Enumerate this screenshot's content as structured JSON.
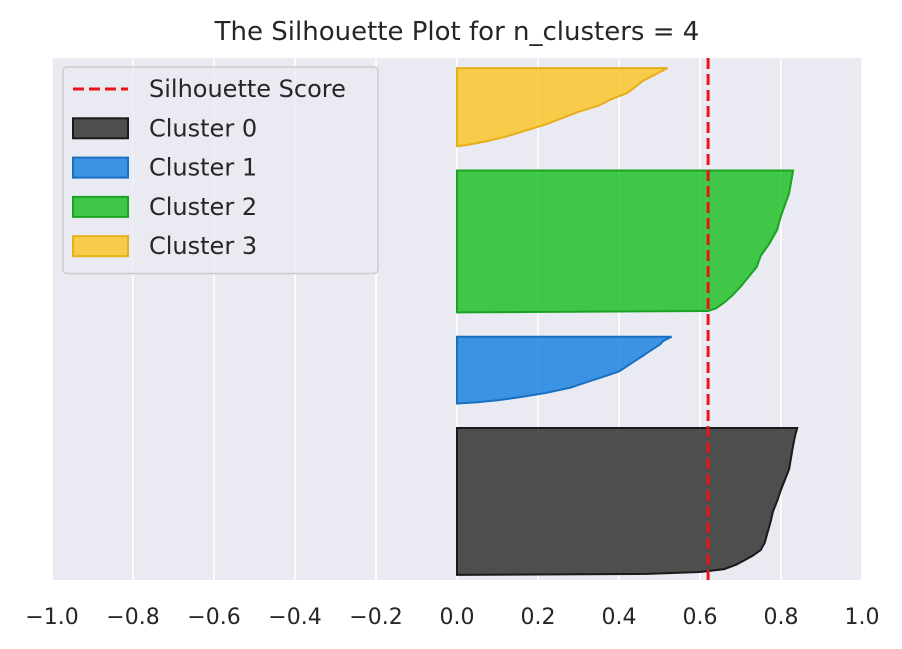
{
  "chart_data": {
    "type": "area",
    "title": "The Silhouette Plot for n_clusters = 4",
    "xlabel": "",
    "ylabel": "",
    "xlim": [
      -1.0,
      1.0
    ],
    "xticks": [
      "−1.0",
      "−0.8",
      "−0.6",
      "−0.4",
      "−0.2",
      "0.0",
      "0.2",
      "0.4",
      "0.6",
      "0.8",
      "1.0"
    ],
    "xtick_values": [
      -1.0,
      -0.8,
      -0.6,
      -0.4,
      -0.2,
      0.0,
      0.2,
      0.4,
      0.6,
      0.8,
      1.0
    ],
    "grid": true,
    "legend_position": "top-left",
    "silhouette_score": {
      "name": "Silhouette Score",
      "value": 0.62,
      "color": "#e8151b"
    },
    "clusters": [
      {
        "name": "Cluster 0",
        "color": "#333333",
        "edge": "#1a1a1a",
        "y_start": 10,
        "y_end": 300,
        "profile": [
          [
            0,
            0.84
          ],
          [
            0.05,
            0.835
          ],
          [
            0.12,
            0.83
          ],
          [
            0.2,
            0.825
          ],
          [
            0.28,
            0.82
          ],
          [
            0.35,
            0.81
          ],
          [
            0.42,
            0.8
          ],
          [
            0.5,
            0.79
          ],
          [
            0.57,
            0.78
          ],
          [
            0.63,
            0.775
          ],
          [
            0.68,
            0.77
          ],
          [
            0.73,
            0.765
          ],
          [
            0.78,
            0.76
          ],
          [
            0.83,
            0.75
          ],
          [
            0.87,
            0.73
          ],
          [
            0.9,
            0.71
          ],
          [
            0.93,
            0.69
          ],
          [
            0.96,
            0.66
          ],
          [
            0.98,
            0.6
          ],
          [
            0.993,
            0.47
          ],
          [
            1,
            0.0
          ]
        ]
      },
      {
        "name": "Cluster 1",
        "color": "#1f84e0",
        "edge": "#1a70c0",
        "y_start": 348,
        "y_end": 480,
        "profile": [
          [
            0,
            0.53
          ],
          [
            0.06,
            0.51
          ],
          [
            0.12,
            0.5
          ],
          [
            0.2,
            0.48
          ],
          [
            0.28,
            0.46
          ],
          [
            0.36,
            0.44
          ],
          [
            0.44,
            0.42
          ],
          [
            0.52,
            0.4
          ],
          [
            0.6,
            0.36
          ],
          [
            0.68,
            0.32
          ],
          [
            0.76,
            0.28
          ],
          [
            0.84,
            0.22
          ],
          [
            0.9,
            0.16
          ],
          [
            0.95,
            0.1
          ],
          [
            0.98,
            0.05
          ],
          [
            1,
            0.0
          ]
        ]
      },
      {
        "name": "Cluster 2",
        "color": "#22c12a",
        "edge": "#1aa322",
        "y_start": 528,
        "y_end": 808,
        "profile": [
          [
            0,
            0.83
          ],
          [
            0.08,
            0.825
          ],
          [
            0.16,
            0.82
          ],
          [
            0.24,
            0.81
          ],
          [
            0.32,
            0.8
          ],
          [
            0.42,
            0.79
          ],
          [
            0.52,
            0.77
          ],
          [
            0.6,
            0.75
          ],
          [
            0.68,
            0.74
          ],
          [
            0.75,
            0.72
          ],
          [
            0.82,
            0.7
          ],
          [
            0.88,
            0.68
          ],
          [
            0.93,
            0.66
          ],
          [
            0.97,
            0.64
          ],
          [
            0.99,
            0.62
          ],
          [
            1,
            0.0
          ]
        ]
      },
      {
        "name": "Cluster 3",
        "color": "#fcc52e",
        "edge": "#e6ae18",
        "y_start": 856,
        "y_end": 1010,
        "profile": [
          [
            0,
            0.52
          ],
          [
            0.08,
            0.49
          ],
          [
            0.16,
            0.46
          ],
          [
            0.24,
            0.44
          ],
          [
            0.32,
            0.42
          ],
          [
            0.4,
            0.38
          ],
          [
            0.48,
            0.35
          ],
          [
            0.56,
            0.3
          ],
          [
            0.64,
            0.26
          ],
          [
            0.72,
            0.22
          ],
          [
            0.8,
            0.17
          ],
          [
            0.88,
            0.12
          ],
          [
            0.94,
            0.07
          ],
          [
            0.98,
            0.03
          ],
          [
            1,
            0.0
          ]
        ]
      }
    ],
    "ylim": [
      0,
      1030
    ]
  }
}
